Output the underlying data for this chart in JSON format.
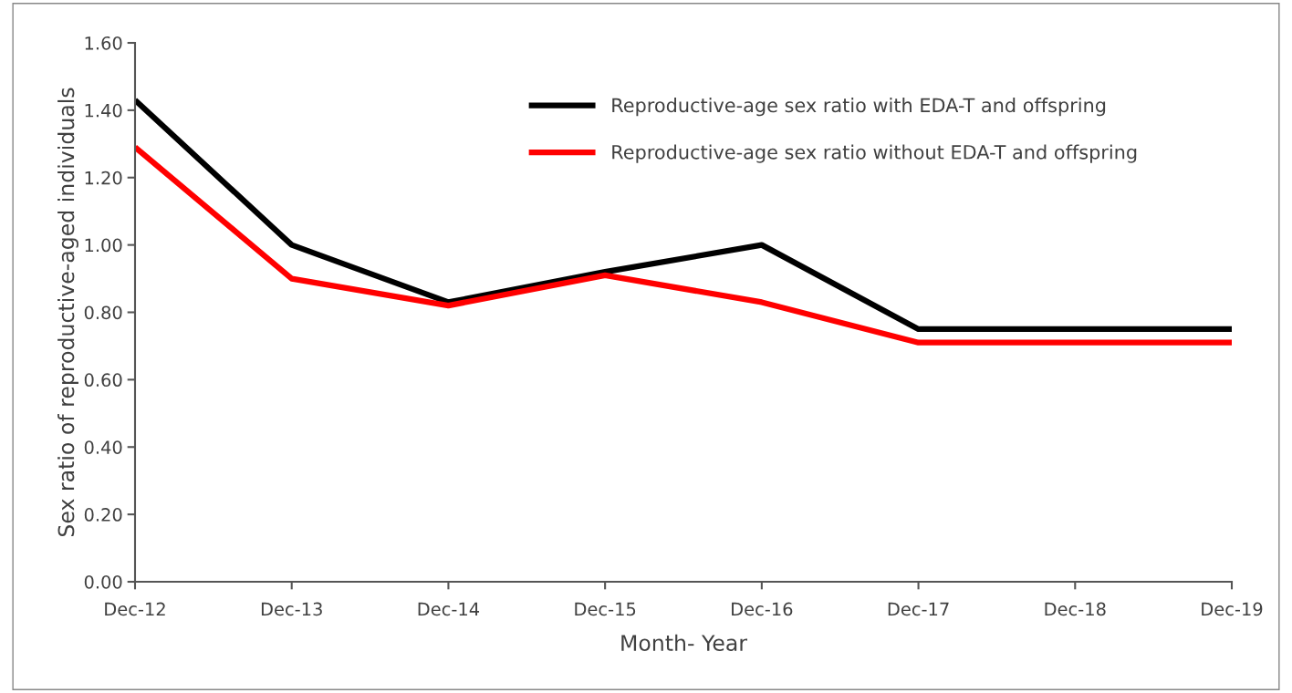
{
  "chart_data": {
    "type": "line",
    "xlabel": "Month- Year",
    "ylabel": "Sex ratio of reproductive-aged individuals",
    "categories": [
      "Dec-12",
      "Dec-13",
      "Dec-14",
      "Dec-15",
      "Dec-16",
      "Dec-17",
      "Dec-18",
      "Dec-19"
    ],
    "series": [
      {
        "name": "Reproductive-age sex ratio with EDA-T and offspring",
        "color": "#000000",
        "values": [
          1.43,
          1.0,
          0.83,
          0.92,
          1.0,
          0.75,
          0.75,
          0.75
        ]
      },
      {
        "name": "Reproductive-age sex ratio without EDA-T and offspring",
        "color": "#ff0000",
        "values": [
          1.29,
          0.9,
          0.82,
          0.91,
          0.83,
          0.71,
          0.71,
          0.71
        ]
      }
    ],
    "ylim": [
      0,
      1.6
    ],
    "yticks": [
      {
        "value": 0,
        "label": "0.00"
      },
      {
        "value": 0.2,
        "label": "0.20"
      },
      {
        "value": 0.4,
        "label": "0.40"
      },
      {
        "value": 0.6,
        "label": "0.60"
      },
      {
        "value": 0.8,
        "label": "0.80"
      },
      {
        "value": 1.0,
        "label": "1.00"
      },
      {
        "value": 1.2,
        "label": "1.20"
      },
      {
        "value": 1.4,
        "label": "1.40"
      },
      {
        "value": 1.6,
        "label": "1.60"
      }
    ],
    "grid": false,
    "legend": "top right",
    "marker": "none",
    "line_style": "solid"
  }
}
